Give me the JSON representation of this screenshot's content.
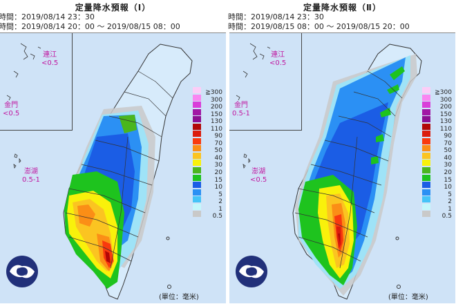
{
  "legend": {
    "labels": [
      "≧300",
      "300",
      "200",
      "150",
      "130",
      "110",
      "90",
      "70",
      "50",
      "40",
      "30",
      "20",
      "15",
      "10",
      "5",
      "2",
      "1",
      "0.5"
    ],
    "colors": [
      "#fccdf7",
      "#f986f1",
      "#d93ed9",
      "#a117a5",
      "#8c0e92",
      "#b20807",
      "#db1c0c",
      "#f93a0e",
      "#fb8e16",
      "#fbc421",
      "#f9f10b",
      "#4ab61d",
      "#1ec31e",
      "#1b5de5",
      "#2b90f4",
      "#45c4f8",
      "#c4f7fb",
      "#c9c9c9"
    ],
    "unit_text": "(單位：毫米)"
  },
  "panels": [
    {
      "title": "定量降水預報（Ⅰ）",
      "issue_time": "時間：2019/08/14 23：30",
      "valid_time": "時間：2019/08/14 20：00 ～ 2019/08/15 08：00",
      "islands": {
        "lienchiang": {
          "name": "連江",
          "value": "<0.5"
        },
        "kinmen": {
          "name": "金門",
          "value": "<0.5"
        },
        "penghu": {
          "name": "澎湖",
          "value": "0.5-1"
        }
      }
    },
    {
      "title": "定量降水預報（Ⅱ）",
      "issue_time": "時間：2019/08/14 23：30",
      "valid_time": "時間：2019/08/15 08：00 ～ 2019/08/15 20：00",
      "islands": {
        "lienchiang": {
          "name": "連江",
          "value": "<0.5"
        },
        "kinmen": {
          "name": "金門",
          "value": "0.5-1"
        },
        "penghu": {
          "name": "澎湖",
          "value": "<0.5"
        }
      }
    }
  ]
}
